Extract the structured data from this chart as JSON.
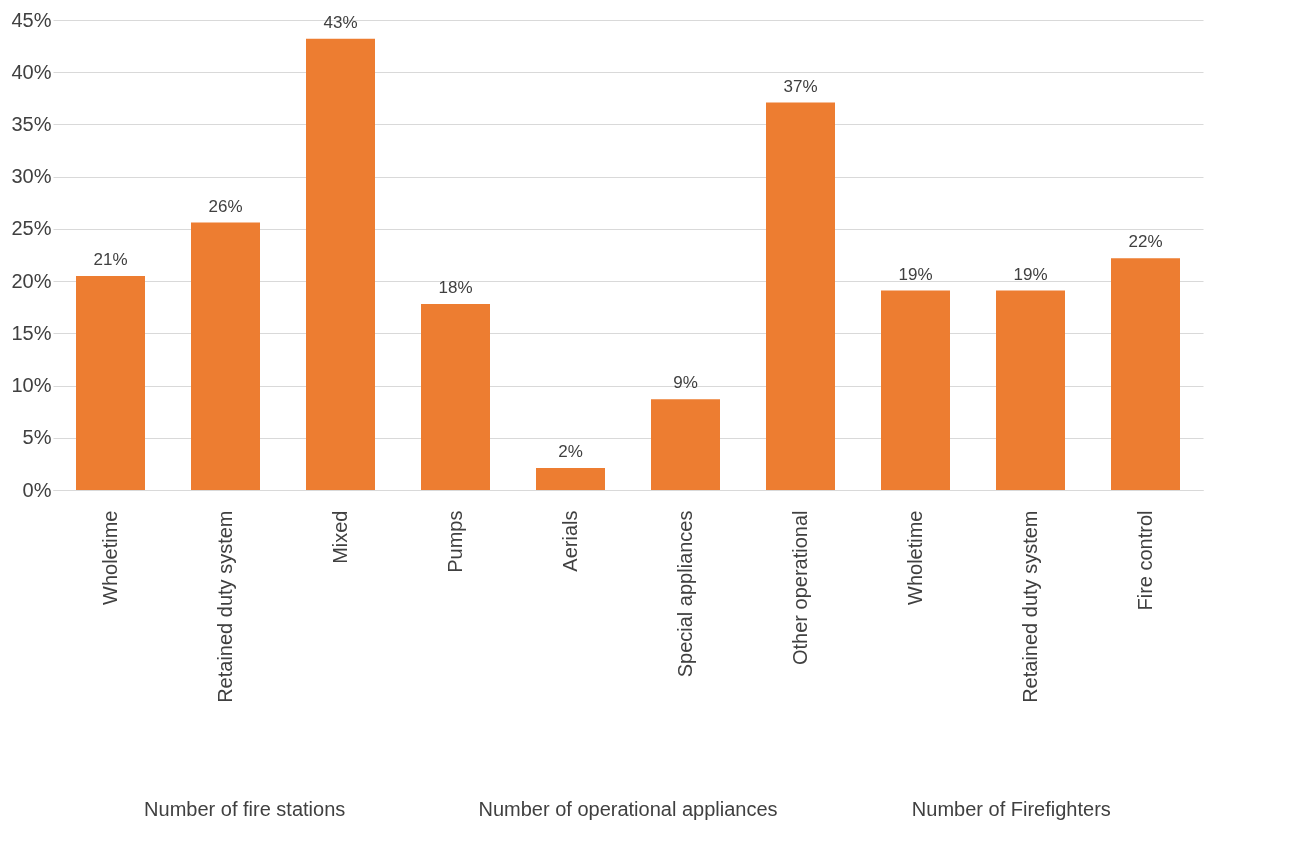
{
  "chart_data": {
    "type": "bar",
    "categories": [
      "Wholetime",
      "Retained duty system",
      "Mixed",
      "Pumps",
      "Aerials",
      "Special appliances",
      "Other operational",
      "Wholetime",
      "Retained duty system",
      "Fire control"
    ],
    "values": [
      20.5,
      25.6,
      43.2,
      17.8,
      2.1,
      8.7,
      37.1,
      19.1,
      19.1,
      22.2
    ],
    "value_labels": [
      "21%",
      "26%",
      "43%",
      "18%",
      "2%",
      "9%",
      "37%",
      "19%",
      "19%",
      "22%"
    ],
    "color": "#ed7d31",
    "ylim": [
      0,
      45
    ],
    "yticks": [
      {
        "value": 0,
        "label": "0%"
      },
      {
        "value": 5,
        "label": "5%"
      },
      {
        "value": 10,
        "label": "10%"
      },
      {
        "value": 15,
        "label": "15%"
      },
      {
        "value": 20,
        "label": "20%"
      },
      {
        "value": 25,
        "label": "25%"
      },
      {
        "value": 30,
        "label": "30%"
      },
      {
        "value": 35,
        "label": "35%"
      },
      {
        "value": 40,
        "label": "40%"
      },
      {
        "value": 45,
        "label": "45%"
      }
    ],
    "grid": "y",
    "annotations": [
      "Number of fire stations",
      "Number of operational appliances",
      "Number of Firefighters"
    ]
  }
}
